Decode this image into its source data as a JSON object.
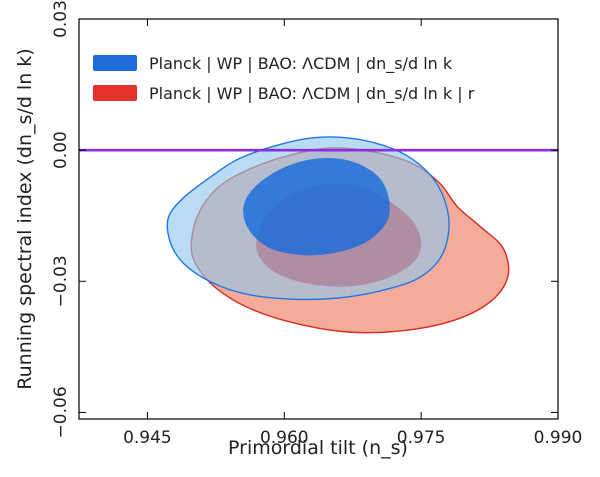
{
  "chart_data": {
    "type": "contour",
    "xlabel": "Primordial tilt (n_s)",
    "ylabel": "Running spectral index (dn_s/d ln k)",
    "xlim": [
      0.9375,
      0.99
    ],
    "ylim": [
      -0.0615,
      0.03
    ],
    "x_ticks": [
      "0.945",
      "0.960",
      "0.975",
      "0.990"
    ],
    "y_ticks": [
      "0.03",
      "0.00",
      "−0.03",
      "−0.06"
    ],
    "grid": false,
    "legend_position": "top-left",
    "horizontal_line": {
      "y": 0.0,
      "color": "#8b2be2"
    },
    "series": [
      {
        "name": "Planck | WP | BAO: ΛCDM + dn_s/d ln k",
        "legend_text": "Planck | WP | BAO: ΛCDM  |  dn_s/d ln k",
        "color": "#1f77e6",
        "light_fill": "#8ec6ee",
        "dark_fill": "#1e6ddb",
        "contour_95": [
          [
            0.9473,
            -0.0154
          ],
          [
            0.949,
            -0.0108
          ],
          [
            0.952,
            -0.006
          ],
          [
            0.955,
            -0.002
          ],
          [
            0.959,
            0.001
          ],
          [
            0.963,
            0.0028
          ],
          [
            0.967,
            0.0028
          ],
          [
            0.971,
            0.001
          ],
          [
            0.974,
            -0.002
          ],
          [
            0.9765,
            -0.007
          ],
          [
            0.9778,
            -0.013
          ],
          [
            0.978,
            -0.019
          ],
          [
            0.977,
            -0.025
          ],
          [
            0.9745,
            -0.0295
          ],
          [
            0.9705,
            -0.0322
          ],
          [
            0.966,
            -0.0338
          ],
          [
            0.961,
            -0.0341
          ],
          [
            0.956,
            -0.033
          ],
          [
            0.952,
            -0.0302
          ],
          [
            0.949,
            -0.026
          ],
          [
            0.9475,
            -0.021
          ]
        ],
        "contour_68": [
          [
            0.9555,
            -0.0135
          ],
          [
            0.9565,
            -0.009
          ],
          [
            0.959,
            -0.005
          ],
          [
            0.962,
            -0.0025
          ],
          [
            0.965,
            -0.0018
          ],
          [
            0.968,
            -0.003
          ],
          [
            0.9705,
            -0.0065
          ],
          [
            0.9715,
            -0.0115
          ],
          [
            0.9712,
            -0.0165
          ],
          [
            0.969,
            -0.021
          ],
          [
            0.9655,
            -0.0235
          ],
          [
            0.962,
            -0.024
          ],
          [
            0.9585,
            -0.0225
          ],
          [
            0.9562,
            -0.0185
          ]
        ]
      },
      {
        "name": "Planck | WP | BAO: ΛCDM + dn_s/d ln k + r",
        "legend_text": "Planck | WP | BAO: ΛCDM  |  dn_s/d ln k  |  r",
        "color": "#d62c1f",
        "light_fill": "#f4a28f",
        "dark_fill": "#e4312a",
        "contour_95": [
          [
            0.9498,
            -0.022
          ],
          [
            0.9505,
            -0.015
          ],
          [
            0.9525,
            -0.009
          ],
          [
            0.9555,
            -0.005
          ],
          [
            0.96,
            -0.0015
          ],
          [
            0.965,
            0.0005
          ],
          [
            0.97,
            -0.0005
          ],
          [
            0.974,
            -0.003
          ],
          [
            0.977,
            -0.0075
          ],
          [
            0.979,
            -0.013
          ],
          [
            0.9815,
            -0.0175
          ],
          [
            0.984,
            -0.0225
          ],
          [
            0.9845,
            -0.029
          ],
          [
            0.9825,
            -0.0348
          ],
          [
            0.9785,
            -0.039
          ],
          [
            0.973,
            -0.0413
          ],
          [
            0.967,
            -0.0416
          ],
          [
            0.961,
            -0.0395
          ],
          [
            0.956,
            -0.036
          ],
          [
            0.9525,
            -0.0315
          ],
          [
            0.9505,
            -0.0268
          ]
        ],
        "contour_68": [
          [
            0.957,
            -0.02
          ],
          [
            0.958,
            -0.015
          ],
          [
            0.9605,
            -0.0105
          ],
          [
            0.964,
            -0.008
          ],
          [
            0.968,
            -0.008
          ],
          [
            0.971,
            -0.011
          ],
          [
            0.974,
            -0.016
          ],
          [
            0.975,
            -0.0215
          ],
          [
            0.974,
            -0.026
          ],
          [
            0.971,
            -0.0295
          ],
          [
            0.967,
            -0.0312
          ],
          [
            0.9625,
            -0.0305
          ],
          [
            0.959,
            -0.028
          ],
          [
            0.9572,
            -0.024
          ]
        ]
      }
    ]
  }
}
